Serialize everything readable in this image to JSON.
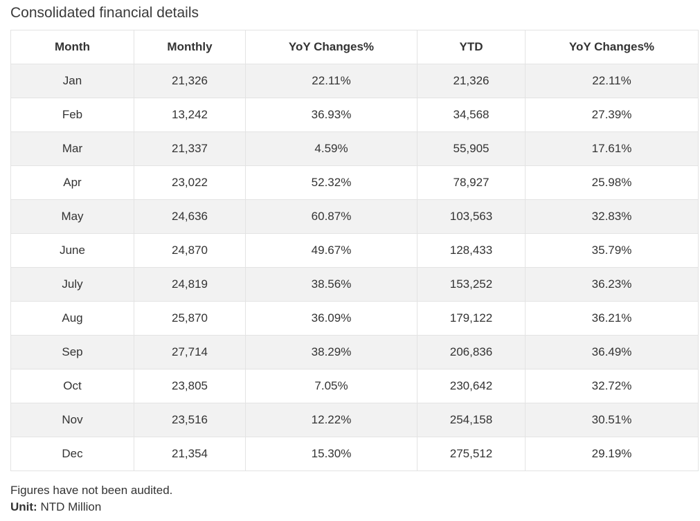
{
  "title": "Consolidated financial details",
  "table": {
    "headers": [
      "Month",
      "Monthly",
      "YoY Changes%",
      "YTD",
      "YoY Changes%"
    ],
    "rows": [
      [
        "Jan",
        "21,326",
        "22.11%",
        "21,326",
        "22.11%"
      ],
      [
        "Feb",
        "13,242",
        "36.93%",
        "34,568",
        "27.39%"
      ],
      [
        "Mar",
        "21,337",
        "4.59%",
        "55,905",
        "17.61%"
      ],
      [
        "Apr",
        "23,022",
        "52.32%",
        "78,927",
        "25.98%"
      ],
      [
        "May",
        "24,636",
        "60.87%",
        "103,563",
        "32.83%"
      ],
      [
        "June",
        "24,870",
        "49.67%",
        "128,433",
        "35.79%"
      ],
      [
        "July",
        "24,819",
        "38.56%",
        "153,252",
        "36.23%"
      ],
      [
        "Aug",
        "25,870",
        "36.09%",
        "179,122",
        "36.21%"
      ],
      [
        "Sep",
        "27,714",
        "38.29%",
        "206,836",
        "36.49%"
      ],
      [
        "Oct",
        "23,805",
        "7.05%",
        "230,642",
        "32.72%"
      ],
      [
        "Nov",
        "23,516",
        "12.22%",
        "254,158",
        "30.51%"
      ],
      [
        "Dec",
        "21,354",
        "15.30%",
        "275,512",
        "29.19%"
      ]
    ]
  },
  "footer": {
    "note": "Figures have not been audited.",
    "unit_label": "Unit:",
    "unit_value": "NTD Million"
  }
}
